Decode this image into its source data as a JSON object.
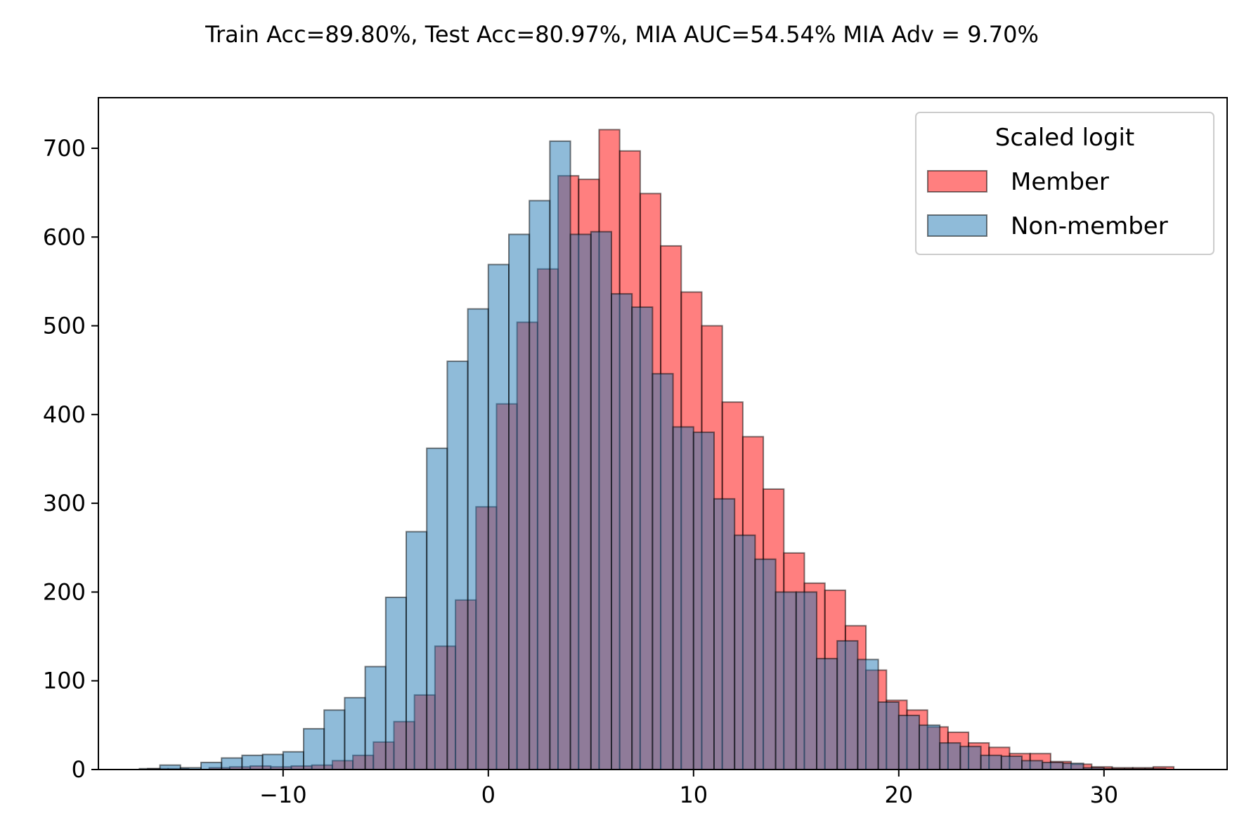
{
  "chart_data": {
    "type": "histogram",
    "title": "Train Acc=89.80%, Test Acc=80.97%, MIA AUC=54.54% MIA Adv = 9.70%",
    "xlabel": "",
    "ylabel": "",
    "xlim": [
      -19,
      36
    ],
    "ylim": [
      0,
      757
    ],
    "x_ticks": [
      -10,
      0,
      10,
      20,
      30
    ],
    "x_tick_labels": [
      "−10",
      "0",
      "10",
      "20",
      "30"
    ],
    "y_ticks": [
      0,
      100,
      200,
      300,
      400,
      500,
      600,
      700
    ],
    "y_tick_labels": [
      "0",
      "100",
      "200",
      "300",
      "400",
      "500",
      "600",
      "700"
    ],
    "grid": false,
    "legend": {
      "title": "Scaled logit",
      "placement": "top-right",
      "entries": [
        "Member",
        "Non-member"
      ]
    },
    "series": [
      {
        "name": "Member",
        "color": "#ff0000",
        "alpha": 0.5,
        "bin_edges": [
          -16.6,
          -15.6,
          -14.6,
          -13.6,
          -12.6,
          -11.6,
          -10.6,
          -9.6,
          -8.6,
          -7.6,
          -6.6,
          -5.6,
          -4.6,
          -3.6,
          -2.6,
          -1.6,
          -0.6,
          0.4,
          1.4,
          2.4,
          3.4,
          4.4,
          5.4,
          6.4,
          7.4,
          8.4,
          9.4,
          10.4,
          11.4,
          12.4,
          13.4,
          14.4,
          15.4,
          16.4,
          17.4,
          18.4,
          19.4,
          20.4,
          21.4,
          22.4,
          23.4,
          24.4,
          25.4,
          26.4,
          27.4,
          28.4,
          29.4,
          30.4,
          31.4,
          32.4,
          33.4
        ],
        "counts": [
          1,
          1,
          0,
          2,
          3,
          4,
          3,
          4,
          5,
          10,
          16,
          31,
          54,
          84,
          139,
          191,
          296,
          412,
          504,
          564,
          669,
          665,
          721,
          697,
          649,
          590,
          538,
          500,
          414,
          375,
          316,
          244,
          210,
          202,
          162,
          112,
          78,
          67,
          48,
          42,
          30,
          25,
          18,
          18,
          9,
          6,
          3,
          2,
          2,
          3
        ]
      },
      {
        "name": "Non-member",
        "color": "#1f77b4",
        "alpha": 0.5,
        "bin_edges": [
          -17.0,
          -16.0,
          -15.0,
          -14.0,
          -13.0,
          -12.0,
          -11.0,
          -10.0,
          -9.0,
          -8.0,
          -7.0,
          -6.0,
          -5.0,
          -4.0,
          -3.0,
          -2.0,
          -1.0,
          0.0,
          1.0,
          2.0,
          3.0,
          4.0,
          5.0,
          6.0,
          7.0,
          8.0,
          9.0,
          10.0,
          11.0,
          12.0,
          13.0,
          14.0,
          15.0,
          16.0,
          17.0,
          18.0,
          19.0,
          20.0,
          21.0,
          22.0,
          23.0,
          24.0,
          25.0,
          26.0,
          27.0,
          28.0,
          29.0,
          30.0,
          31.0,
          32.0,
          33.0
        ],
        "counts": [
          1,
          5,
          2,
          8,
          13,
          16,
          17,
          20,
          46,
          67,
          81,
          116,
          194,
          268,
          362,
          460,
          519,
          569,
          603,
          641,
          708,
          603,
          606,
          536,
          521,
          446,
          386,
          380,
          305,
          264,
          237,
          200,
          200,
          125,
          145,
          124,
          76,
          61,
          50,
          30,
          26,
          16,
          15,
          10,
          8,
          7,
          2,
          1,
          1,
          1
        ]
      }
    ]
  }
}
